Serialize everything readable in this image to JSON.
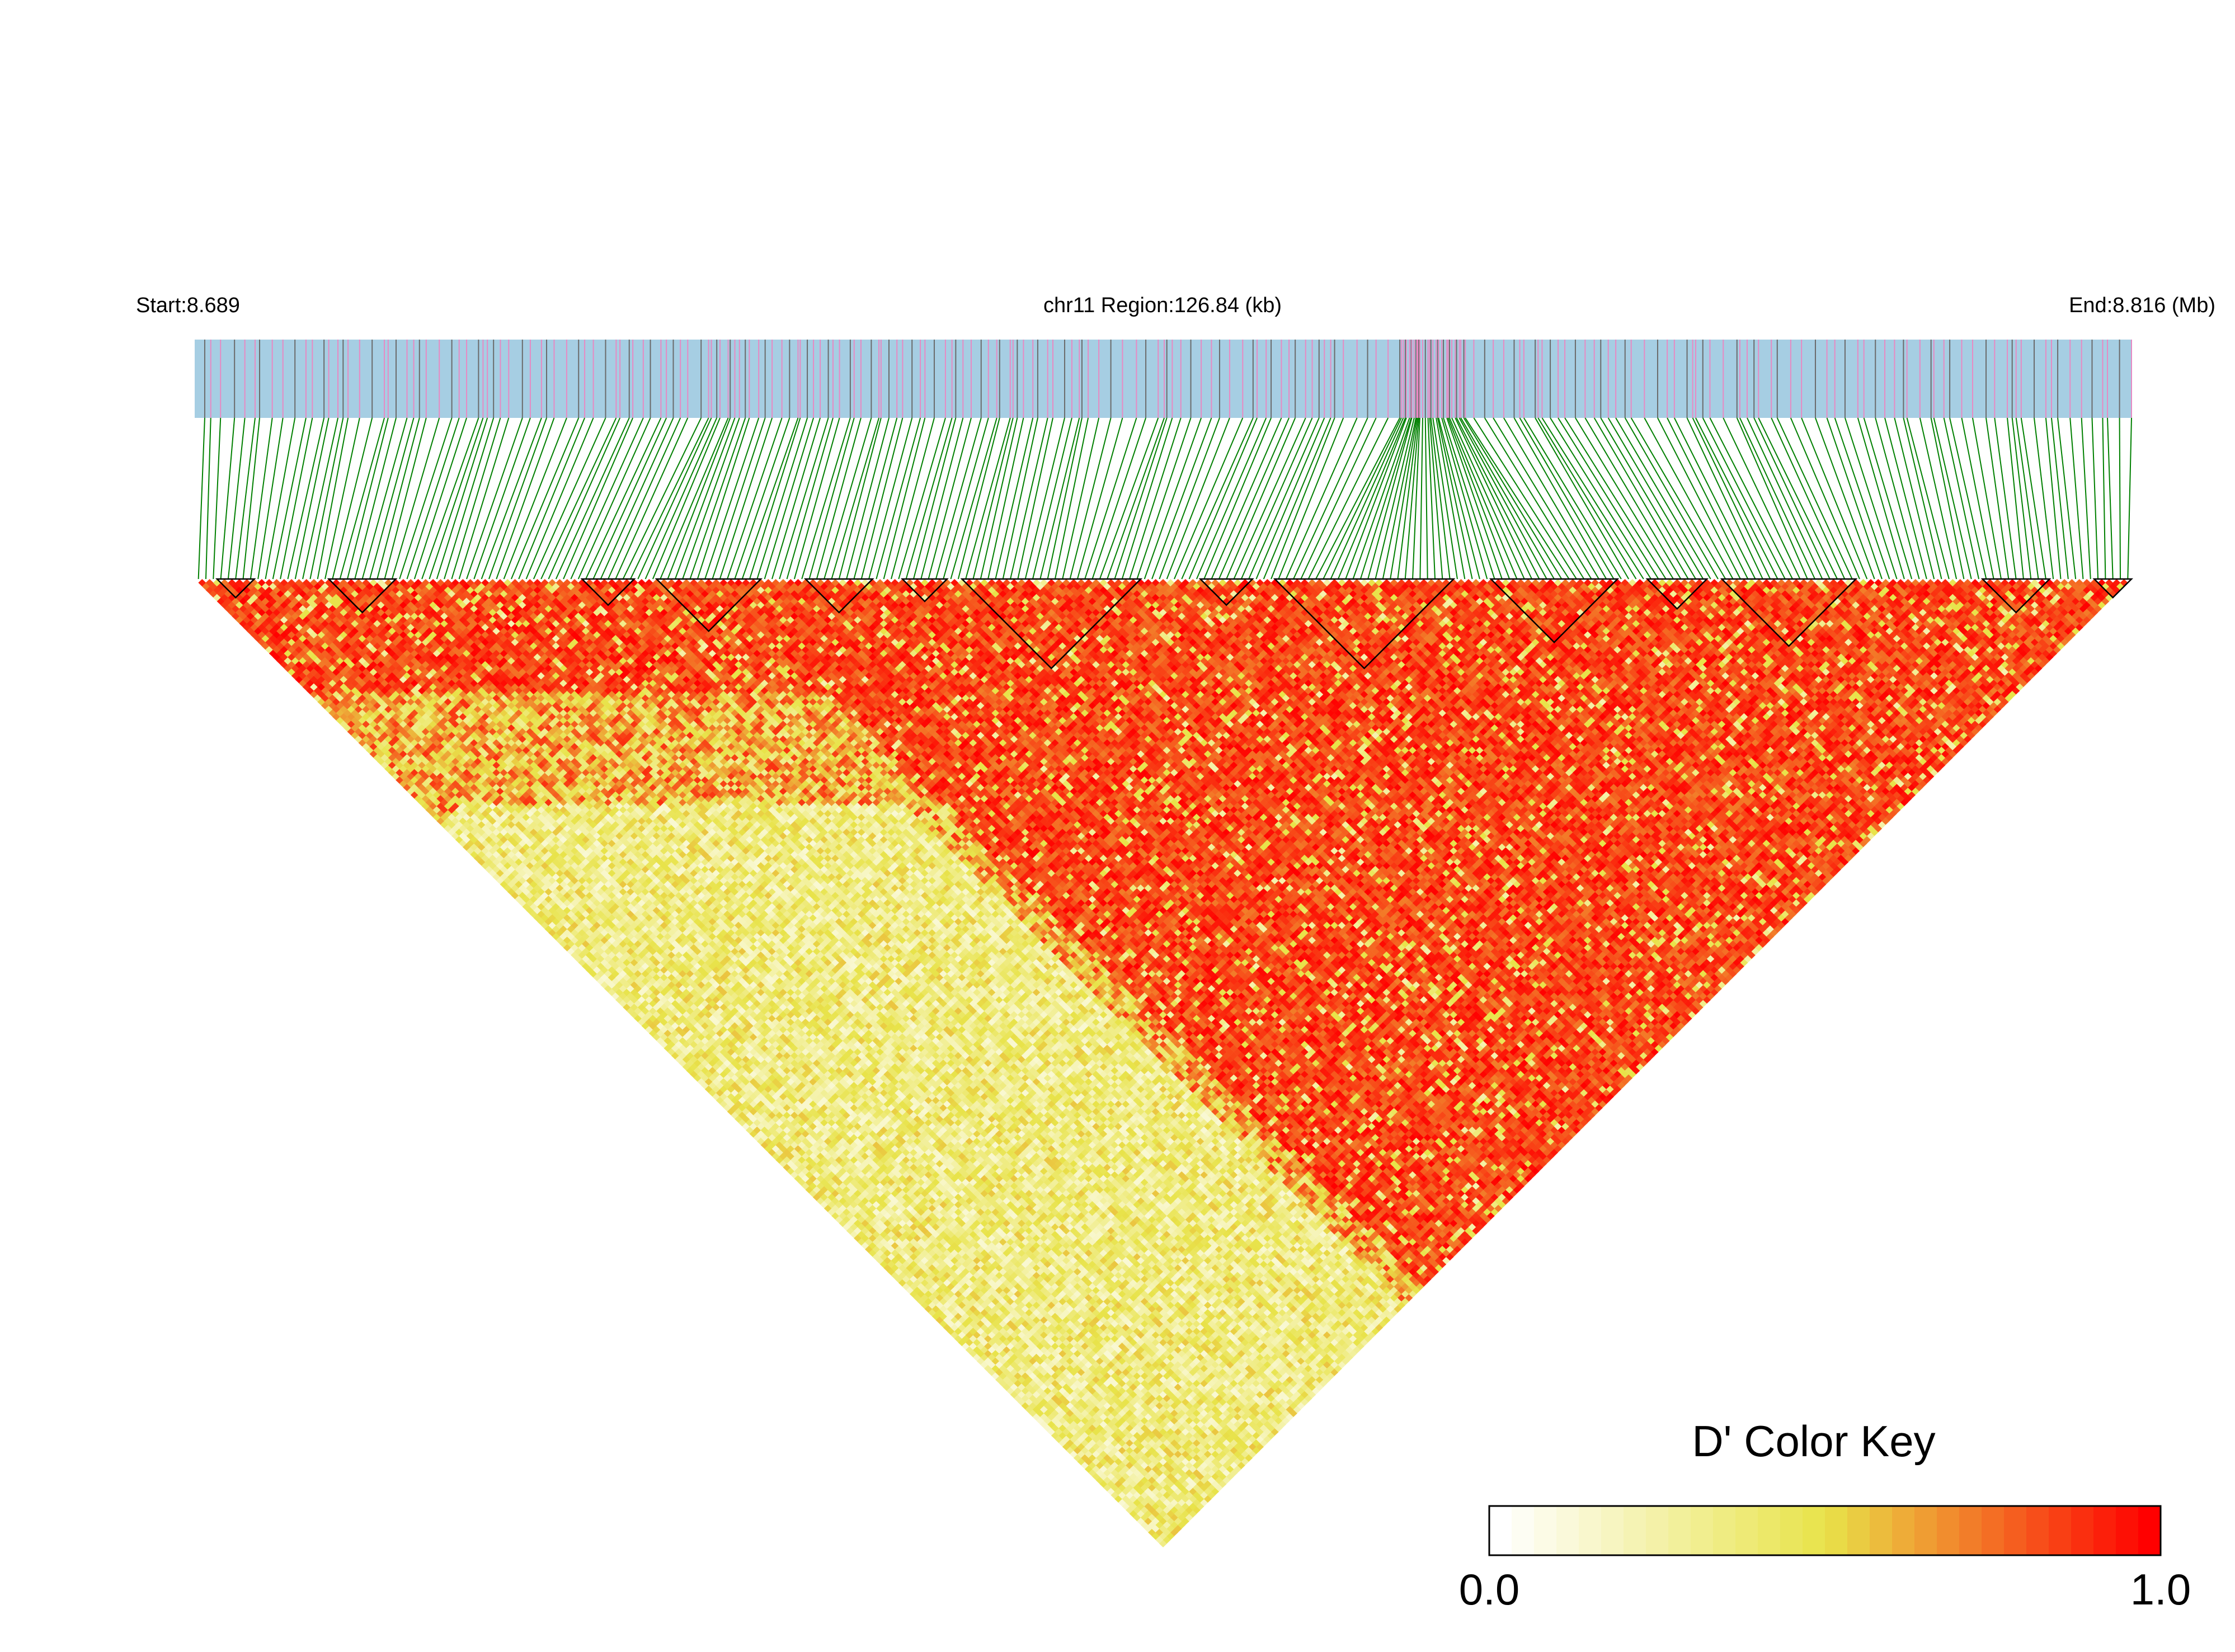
{
  "header": {
    "start_label": "Start:8.689",
    "region_label": "chr11 Region:126.84 (kb)",
    "end_label": "End:8.816 (Mb)"
  },
  "legend": {
    "title": "D' Color Key",
    "min_label": "0.0",
    "max_label": "1.0"
  },
  "colors": {
    "track_bg": "#a6cee3",
    "snp_tick_pink": "#e78ac3",
    "snp_tick_gray": "#6b6b6b",
    "connector_green": "#008000",
    "block_outline": "#000000",
    "key_low": "#ffffff",
    "key_mid": "#e8e34a",
    "key_high": "#ff0000"
  },
  "chart_data": {
    "type": "heatmap",
    "chromosome": "chr11",
    "start_mb": 8.689,
    "end_mb": 8.816,
    "region_kb": 126.84,
    "n_snps": 260,
    "value_range": [
      0.0,
      1.0
    ],
    "color_key_steps": 30,
    "ld_blocks_snp_ranges": [
      [
        3,
        7
      ],
      [
        18,
        26
      ],
      [
        52,
        58
      ],
      [
        62,
        75
      ],
      [
        82,
        90
      ],
      [
        95,
        100
      ],
      [
        103,
        126
      ],
      [
        135,
        141
      ],
      [
        145,
        168
      ],
      [
        174,
        190
      ],
      [
        195,
        202
      ],
      [
        205,
        222
      ],
      [
        240,
        248
      ],
      [
        255,
        259
      ]
    ]
  }
}
